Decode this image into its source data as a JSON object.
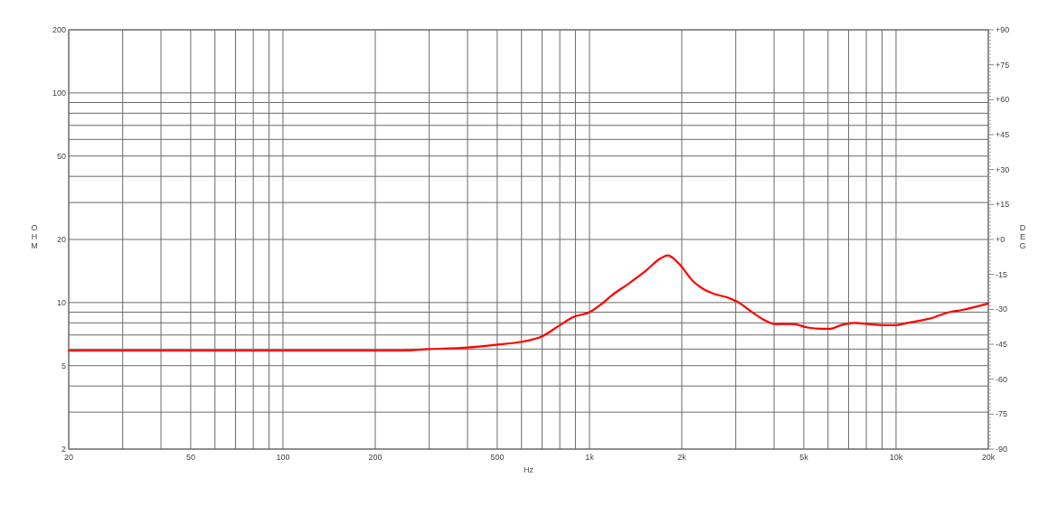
{
  "chart_data": {
    "type": "line",
    "xlabel": "Hz",
    "ylabel": "OHM",
    "y2label": "DEG",
    "x": [
      20,
      57,
      237,
      300,
      400,
      500,
      600,
      700,
      790,
      880,
      1000,
      1100,
      1180,
      1330,
      1520,
      1700,
      1800,
      1960,
      2180,
      2330,
      2550,
      2860,
      3030,
      3430,
      3750,
      4020,
      4600,
      5150,
      5700,
      6100,
      6600,
      7300,
      8100,
      9100,
      9900,
      10900,
      13300,
      14900,
      16300,
      20000
    ],
    "series": [
      {
        "color": "#ff0000",
        "values": [
          5.9,
          5.9,
          5.9,
          6.0,
          6.1,
          6.3,
          6.5,
          6.9,
          7.7,
          8.5,
          9.0,
          9.9,
          10.8,
          12.2,
          14.1,
          16.2,
          16.8,
          15.3,
          12.6,
          11.7,
          11.0,
          10.5,
          10.1,
          8.9,
          8.2,
          7.9,
          7.9,
          7.6,
          7.5,
          7.5,
          7.8,
          8.0,
          7.9,
          7.8,
          7.8,
          8.0,
          8.5,
          9.0,
          9.2,
          9.9
        ]
      }
    ],
    "log": "xy",
    "xlim": [
      20,
      20000
    ],
    "xticks": [
      20,
      {
        "value": 30,
        "label": null
      },
      {
        "value": 40,
        "label": null
      },
      50,
      {
        "value": 60,
        "label": null
      },
      {
        "value": 70,
        "label": null
      },
      {
        "value": 80,
        "label": null
      },
      {
        "value": 90,
        "label": null
      },
      100,
      200,
      {
        "value": 300,
        "label": null
      },
      {
        "value": 400,
        "label": null
      },
      500,
      {
        "value": 600,
        "label": null
      },
      {
        "value": 700,
        "label": null
      },
      {
        "value": 800,
        "label": null
      },
      {
        "value": 900,
        "label": null
      },
      {
        "value": 1000,
        "label": "1k"
      },
      {
        "value": 2000,
        "label": "2k"
      },
      {
        "value": 3000,
        "label": null
      },
      {
        "value": 4000,
        "label": null
      },
      {
        "value": 5000,
        "label": "5k"
      },
      {
        "value": 6000,
        "label": null
      },
      {
        "value": 7000,
        "label": null
      },
      {
        "value": 8000,
        "label": null
      },
      {
        "value": 9000,
        "label": null
      },
      {
        "value": 10000,
        "label": "10k"
      },
      {
        "value": 20000,
        "label": "20k"
      }
    ],
    "ylim": [
      2,
      200
    ],
    "yticks": [
      2,
      {
        "value": 3,
        "label": null
      },
      {
        "value": 4,
        "label": null
      },
      5,
      {
        "value": 6,
        "label": null
      },
      {
        "value": 7,
        "label": null
      },
      {
        "value": 8,
        "label": null
      },
      {
        "value": 9,
        "label": null
      },
      10,
      20,
      {
        "value": 30,
        "label": null
      },
      {
        "value": 40,
        "label": null
      },
      50,
      {
        "value": 60,
        "label": null
      },
      {
        "value": 70,
        "label": null
      },
      {
        "value": 80,
        "label": null
      },
      {
        "value": 90,
        "label": null
      },
      100,
      200
    ],
    "y2lim": [
      -90,
      90
    ],
    "y2ticks": [
      {
        "value": -90,
        "label": "-90"
      },
      {
        "value": -88.5,
        "label": null
      },
      {
        "value": -87,
        "label": null
      },
      {
        "value": -85.5,
        "label": null
      },
      {
        "value": -84,
        "label": null
      },
      {
        "value": -82.5,
        "label": null
      },
      {
        "value": -81,
        "label": null
      },
      {
        "value": -79.5,
        "label": null
      },
      {
        "value": -78,
        "label": null
      },
      {
        "value": -76.5,
        "label": null
      },
      {
        "value": -75,
        "label": "-75"
      },
      {
        "value": -73.5,
        "label": null
      },
      {
        "value": -72,
        "label": null
      },
      {
        "value": -70.5,
        "label": null
      },
      {
        "value": -69,
        "label": null
      },
      {
        "value": -67.5,
        "label": null
      },
      {
        "value": -66,
        "label": null
      },
      {
        "value": -64.5,
        "label": null
      },
      {
        "value": -63,
        "label": null
      },
      {
        "value": -61.5,
        "label": null
      },
      {
        "value": -60,
        "label": "-60"
      },
      {
        "value": -58.5,
        "label": null
      },
      {
        "value": -57,
        "label": null
      },
      {
        "value": -55.5,
        "label": null
      },
      {
        "value": -54,
        "label": null
      },
      {
        "value": -52.5,
        "label": null
      },
      {
        "value": -51,
        "label": null
      },
      {
        "value": -49.5,
        "label": null
      },
      {
        "value": -48,
        "label": null
      },
      {
        "value": -46.5,
        "label": null
      },
      {
        "value": -45,
        "label": "-45"
      },
      {
        "value": -43.5,
        "label": null
      },
      {
        "value": -42,
        "label": null
      },
      {
        "value": -40.5,
        "label": null
      },
      {
        "value": -39,
        "label": null
      },
      {
        "value": -37.5,
        "label": null
      },
      {
        "value": -36,
        "label": null
      },
      {
        "value": -34.5,
        "label": null
      },
      {
        "value": -33,
        "label": null
      },
      {
        "value": -31.5,
        "label": null
      },
      {
        "value": -30,
        "label": "-30"
      },
      {
        "value": -28.5,
        "label": null
      },
      {
        "value": -27,
        "label": null
      },
      {
        "value": -25.5,
        "label": null
      },
      {
        "value": -24,
        "label": null
      },
      {
        "value": -22.5,
        "label": null
      },
      {
        "value": -21,
        "label": null
      },
      {
        "value": -19.5,
        "label": null
      },
      {
        "value": -18,
        "label": null
      },
      {
        "value": -16.5,
        "label": null
      },
      {
        "value": -15,
        "label": "-15"
      },
      {
        "value": -13.5,
        "label": null
      },
      {
        "value": -12,
        "label": null
      },
      {
        "value": -10.5,
        "label": null
      },
      {
        "value": -9,
        "label": null
      },
      {
        "value": -7.5,
        "label": null
      },
      {
        "value": -6,
        "label": null
      },
      {
        "value": -4.5,
        "label": null
      },
      {
        "value": -3,
        "label": null
      },
      {
        "value": -1.5,
        "label": null
      },
      {
        "value": 0,
        "label": "+0"
      },
      {
        "value": 1.5,
        "label": null
      },
      {
        "value": 3,
        "label": null
      },
      {
        "value": 4.5,
        "label": null
      },
      {
        "value": 6,
        "label": null
      },
      {
        "value": 7.5,
        "label": null
      },
      {
        "value": 9,
        "label": null
      },
      {
        "value": 10.5,
        "label": null
      },
      {
        "value": 12,
        "label": null
      },
      {
        "value": 13.5,
        "label": null
      },
      {
        "value": 15,
        "label": "+15"
      },
      {
        "value": 16.5,
        "label": null
      },
      {
        "value": 18,
        "label": null
      },
      {
        "value": 19.5,
        "label": null
      },
      {
        "value": 21,
        "label": null
      },
      {
        "value": 22.5,
        "label": null
      },
      {
        "value": 24,
        "label": null
      },
      {
        "value": 25.5,
        "label": null
      },
      {
        "value": 27,
        "label": null
      },
      {
        "value": 28.5,
        "label": null
      },
      {
        "value": 30,
        "label": "+30"
      },
      {
        "value": 31.5,
        "label": null
      },
      {
        "value": 33,
        "label": null
      },
      {
        "value": 34.5,
        "label": null
      },
      {
        "value": 36,
        "label": null
      },
      {
        "value": 37.5,
        "label": null
      },
      {
        "value": 39,
        "label": null
      },
      {
        "value": 40.5,
        "label": null
      },
      {
        "value": 42,
        "label": null
      },
      {
        "value": 43.5,
        "label": null
      },
      {
        "value": 45,
        "label": "+45"
      },
      {
        "value": 46.5,
        "label": null
      },
      {
        "value": 48,
        "label": null
      },
      {
        "value": 49.5,
        "label": null
      },
      {
        "value": 51,
        "label": null
      },
      {
        "value": 52.5,
        "label": null
      },
      {
        "value": 54,
        "label": null
      },
      {
        "value": 55.5,
        "label": null
      },
      {
        "value": 57,
        "label": null
      },
      {
        "value": 58.5,
        "label": null
      },
      {
        "value": 60,
        "label": "+60"
      },
      {
        "value": 61.5,
        "label": null
      },
      {
        "value": 63,
        "label": null
      },
      {
        "value": 64.5,
        "label": null
      },
      {
        "value": 66,
        "label": null
      },
      {
        "value": 67.5,
        "label": null
      },
      {
        "value": 69,
        "label": null
      },
      {
        "value": 70.5,
        "label": null
      },
      {
        "value": 72,
        "label": null
      },
      {
        "value": 73.5,
        "label": null
      },
      {
        "value": 75,
        "label": "+75"
      },
      {
        "value": 76.5,
        "label": null
      },
      {
        "value": 78,
        "label": null
      },
      {
        "value": 79.5,
        "label": null
      },
      {
        "value": 81,
        "label": null
      },
      {
        "value": 82.5,
        "label": null
      },
      {
        "value": 84,
        "label": null
      },
      {
        "value": 85.5,
        "label": null
      },
      {
        "value": 87,
        "label": null
      },
      {
        "value": 88.5,
        "label": null
      },
      {
        "value": 90,
        "label": "+90"
      }
    ],
    "grid": true
  }
}
